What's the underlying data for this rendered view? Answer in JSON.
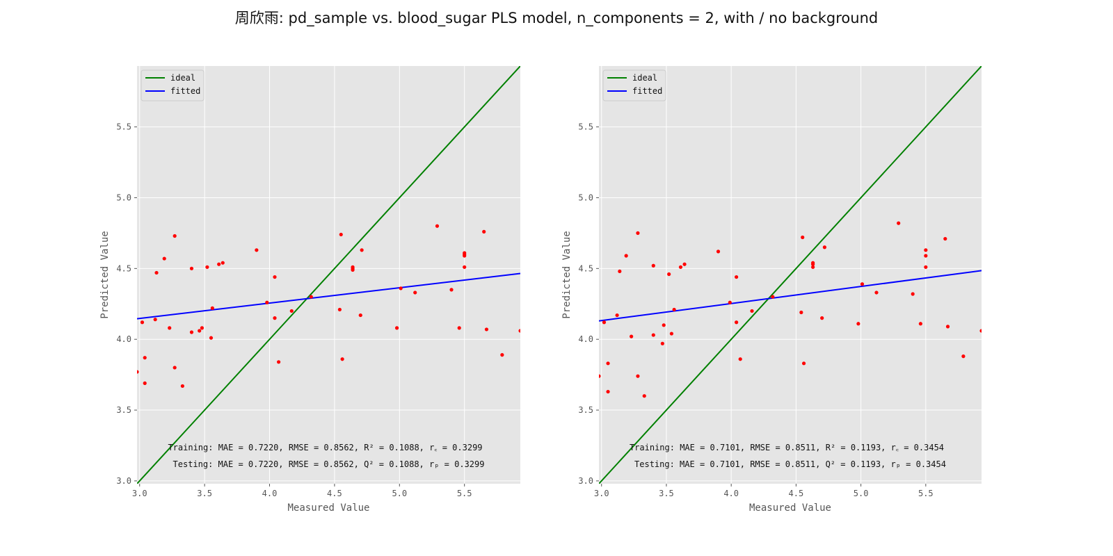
{
  "figure": {
    "title": "周欣雨: pd_sample vs. blood_sugar PLS model, n_components = 2, with / no background"
  },
  "colors": {
    "plot_bg": "#e5e5e5",
    "grid": "#ffffff",
    "ideal": "#008000",
    "fitted": "#0000ff",
    "points": "#ff0000"
  },
  "chart_data": [
    {
      "type": "scatter",
      "xlabel": "Measured Value",
      "ylabel": "Predicted Value",
      "xlim": [
        2.98,
        5.93
      ],
      "ylim": [
        2.98,
        5.93
      ],
      "xticks": [
        "3.0",
        "3.5",
        "4.0",
        "4.5",
        "5.0",
        "5.5"
      ],
      "yticks": [
        "3.0",
        "3.5",
        "4.0",
        "4.5",
        "5.0",
        "5.5"
      ],
      "legend": {
        "position": "top-left",
        "entries": [
          "ideal",
          "fitted"
        ]
      },
      "grid": true,
      "ideal_line": [
        [
          2.98,
          2.98
        ],
        [
          5.93,
          5.93
        ]
      ],
      "fitted_line": [
        [
          2.98,
          4.145
        ],
        [
          5.93,
          4.465
        ]
      ],
      "metrics": {
        "training": "Training: MAE = 0.7220, RMSE = 0.8562, R² = 0.1088, r꜀ = 0.3299",
        "testing": "Testing: MAE = 0.7220, RMSE = 0.8562, Q² = 0.1088, rₚ = 0.3299"
      },
      "points": [
        [
          2.98,
          3.77
        ],
        [
          3.02,
          4.12
        ],
        [
          3.04,
          3.87
        ],
        [
          3.04,
          3.69
        ],
        [
          3.12,
          4.14
        ],
        [
          3.13,
          4.47
        ],
        [
          3.19,
          4.57
        ],
        [
          3.23,
          4.08
        ],
        [
          3.27,
          4.73
        ],
        [
          3.27,
          3.8
        ],
        [
          3.33,
          3.67
        ],
        [
          3.4,
          4.5
        ],
        [
          3.4,
          4.05
        ],
        [
          3.46,
          4.06
        ],
        [
          3.48,
          4.08
        ],
        [
          3.52,
          4.51
        ],
        [
          3.55,
          4.01
        ],
        [
          3.56,
          4.22
        ],
        [
          3.61,
          4.53
        ],
        [
          3.64,
          4.54
        ],
        [
          3.9,
          4.63
        ],
        [
          3.98,
          4.26
        ],
        [
          4.04,
          4.44
        ],
        [
          4.04,
          4.15
        ],
        [
          4.07,
          3.84
        ],
        [
          4.17,
          4.2
        ],
        [
          4.32,
          4.3
        ],
        [
          4.54,
          4.21
        ],
        [
          4.55,
          4.74
        ],
        [
          4.56,
          3.86
        ],
        [
          4.64,
          4.51
        ],
        [
          4.64,
          4.5
        ],
        [
          4.64,
          4.49
        ],
        [
          4.7,
          4.17
        ],
        [
          4.71,
          4.63
        ],
        [
          4.98,
          4.08
        ],
        [
          5.01,
          4.36
        ],
        [
          5.12,
          4.33
        ],
        [
          5.29,
          4.8
        ],
        [
          5.4,
          4.35
        ],
        [
          5.46,
          4.08
        ],
        [
          5.5,
          4.61
        ],
        [
          5.5,
          4.6
        ],
        [
          5.5,
          4.59
        ],
        [
          5.5,
          4.51
        ],
        [
          5.65,
          4.76
        ],
        [
          5.67,
          4.07
        ],
        [
          5.79,
          3.89
        ],
        [
          5.93,
          4.06
        ]
      ]
    },
    {
      "type": "scatter",
      "xlabel": "Measured Value",
      "ylabel": "Predicted Value",
      "xlim": [
        2.98,
        5.93
      ],
      "ylim": [
        2.98,
        5.93
      ],
      "xticks": [
        "3.0",
        "3.5",
        "4.0",
        "4.5",
        "5.0",
        "5.5"
      ],
      "yticks": [
        "3.0",
        "3.5",
        "4.0",
        "4.5",
        "5.0",
        "5.5"
      ],
      "legend": {
        "position": "top-left",
        "entries": [
          "ideal",
          "fitted"
        ]
      },
      "grid": true,
      "ideal_line": [
        [
          2.98,
          2.98
        ],
        [
          5.93,
          5.93
        ]
      ],
      "fitted_line": [
        [
          2.98,
          4.13
        ],
        [
          5.93,
          4.485
        ]
      ],
      "metrics": {
        "training": "Training: MAE = 0.7101, RMSE = 0.8511, R² = 0.1193, r꜀ = 0.3454",
        "testing": "Testing: MAE = 0.7101, RMSE = 0.8511, Q² = 0.1193, rₚ = 0.3454"
      },
      "points": [
        [
          2.98,
          3.74
        ],
        [
          3.02,
          4.12
        ],
        [
          3.05,
          3.83
        ],
        [
          3.05,
          3.63
        ],
        [
          3.12,
          4.17
        ],
        [
          3.14,
          4.48
        ],
        [
          3.19,
          4.59
        ],
        [
          3.23,
          4.02
        ],
        [
          3.28,
          4.75
        ],
        [
          3.28,
          3.74
        ],
        [
          3.33,
          3.6
        ],
        [
          3.4,
          4.52
        ],
        [
          3.4,
          4.03
        ],
        [
          3.47,
          3.97
        ],
        [
          3.48,
          4.1
        ],
        [
          3.52,
          4.46
        ],
        [
          3.54,
          4.04
        ],
        [
          3.56,
          4.21
        ],
        [
          3.61,
          4.51
        ],
        [
          3.64,
          4.53
        ],
        [
          3.9,
          4.62
        ],
        [
          3.99,
          4.26
        ],
        [
          4.04,
          4.44
        ],
        [
          4.04,
          4.12
        ],
        [
          4.07,
          3.86
        ],
        [
          4.16,
          4.2
        ],
        [
          4.32,
          4.3
        ],
        [
          4.54,
          4.19
        ],
        [
          4.55,
          4.72
        ],
        [
          4.56,
          3.83
        ],
        [
          4.63,
          4.54
        ],
        [
          4.63,
          4.53
        ],
        [
          4.63,
          4.51
        ],
        [
          4.7,
          4.15
        ],
        [
          4.72,
          4.65
        ],
        [
          4.98,
          4.11
        ],
        [
          5.01,
          4.39
        ],
        [
          5.12,
          4.33
        ],
        [
          5.29,
          4.82
        ],
        [
          5.4,
          4.32
        ],
        [
          5.46,
          4.11
        ],
        [
          5.5,
          4.63
        ],
        [
          5.5,
          4.59
        ],
        [
          5.5,
          4.51
        ],
        [
          5.65,
          4.71
        ],
        [
          5.67,
          4.09
        ],
        [
          5.79,
          3.88
        ],
        [
          5.93,
          4.06
        ]
      ]
    }
  ]
}
